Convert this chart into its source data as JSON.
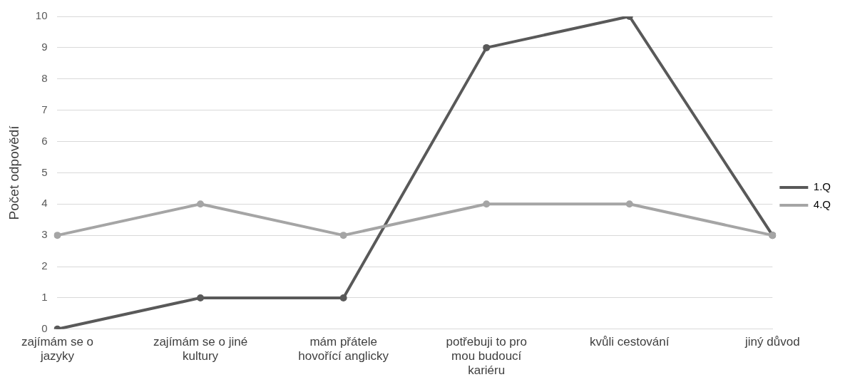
{
  "chart_data": {
    "type": "line",
    "ylabel": "Počet odpovědí",
    "categories": [
      "zajímám se o jazyky",
      "zajímám se o jiné kultury",
      "mám přátele hovořící anglicky",
      "potřebuji to pro mou budoucí kariéru",
      "kvůli cestování",
      "jiný důvod"
    ],
    "series": [
      {
        "name": "1.Q",
        "color": "#595959",
        "values": [
          0,
          1,
          1,
          9,
          10,
          3
        ]
      },
      {
        "name": "4.Q",
        "color": "#a5a5a5",
        "values": [
          3,
          4,
          3,
          4,
          4,
          3
        ]
      }
    ],
    "ylim": [
      0,
      10
    ],
    "yticks": [
      0,
      1,
      2,
      3,
      4,
      5,
      6,
      7,
      8,
      9,
      10
    ],
    "grid": "y",
    "legend": "right",
    "marker": "circle",
    "line_style": "solid"
  }
}
